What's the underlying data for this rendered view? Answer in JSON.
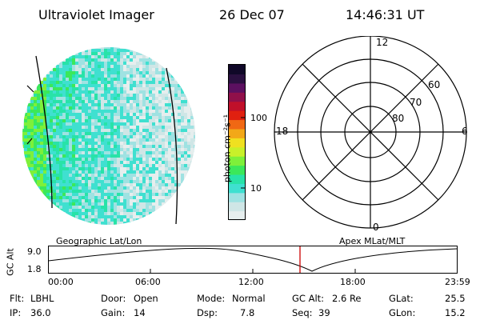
{
  "header": {
    "instrument": "Ultraviolet Imager",
    "date": "26 Dec 07",
    "time": "14:46:31 UT"
  },
  "colorbar": {
    "unit_label": "photon cm⁻²s⁻¹",
    "tick_100": "100",
    "tick_10": "10",
    "colors": [
      "#e6eeee",
      "#cfe6e6",
      "#9fe2e2",
      "#3fe0d0",
      "#28e3a8",
      "#3be85a",
      "#7ef03a",
      "#c8f02a",
      "#f0e020",
      "#f2a818",
      "#f06814",
      "#e02010",
      "#c0102a",
      "#90104a",
      "#5c1060",
      "#2a1040",
      "#100828"
    ]
  },
  "polar": {
    "labels": {
      "top": "12",
      "bottom": "0",
      "left": "18",
      "right": "6"
    },
    "rings": [
      "60",
      "70",
      "80"
    ]
  },
  "plot": {
    "title_left": "Geographic Lat/Lon",
    "title_right": "Apex MLat/MLT",
    "ylabel": "GC Alt",
    "ytick_top": "9.0",
    "ytick_bottom": "1.8",
    "xticks": [
      "00:00",
      "06:00",
      "12:00",
      "18:00",
      "23:59"
    ],
    "marker_color": "#cc0000"
  },
  "status": {
    "flt_label": "Flt:",
    "flt_value": "LBHL",
    "ip_label": "IP:",
    "ip_value": "36.0",
    "door_label": "Door:",
    "door_value": "Open",
    "gain_label": "Gain:",
    "gain_value": "14",
    "mode_label": "Mode:",
    "mode_value": "Normal",
    "dsp_label": "Dsp:",
    "dsp_value": "7.8",
    "gcalt_label": "GC Alt:",
    "gcalt_value": "2.6 Re",
    "seq_label": "Seq:",
    "seq_value": "39",
    "glat_label": "GLat:",
    "glat_value": "25.5",
    "glon_label": "GLon:",
    "glon_value": "15.2"
  }
}
